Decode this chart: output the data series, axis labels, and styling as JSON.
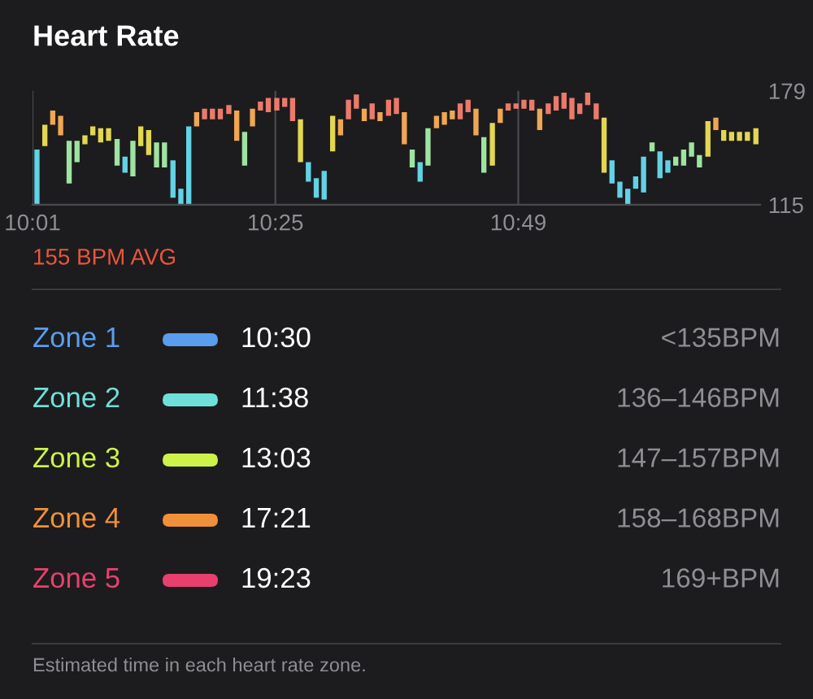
{
  "chart_data": [
    {
      "type": "bar",
      "title": "Heart Rate",
      "annotations": [
        "155 BPM AVG"
      ],
      "x": [
        10.024,
        10.037,
        10.05,
        10.063,
        10.077,
        10.09,
        10.103,
        10.116,
        10.129,
        10.142,
        10.156,
        10.169,
        10.182,
        10.195,
        10.208,
        10.221,
        10.234,
        10.248,
        10.261,
        10.274,
        10.287,
        10.3,
        10.313,
        10.326,
        10.34,
        10.353,
        10.366,
        10.379,
        10.392,
        10.405,
        10.419,
        10.432,
        10.445,
        10.458,
        10.471,
        10.484,
        10.497,
        10.511,
        10.524,
        10.537,
        10.55,
        10.563,
        10.576,
        10.589,
        10.603,
        10.616,
        10.629,
        10.642,
        10.655,
        10.668,
        10.682,
        10.695,
        10.708,
        10.721,
        10.734,
        10.747,
        10.76,
        10.774,
        10.787,
        10.8,
        10.813,
        10.826,
        10.839,
        10.852,
        10.866,
        10.879,
        10.892,
        10.905,
        10.918,
        10.931,
        10.945,
        10.958,
        10.971,
        10.984,
        10.997,
        11.01,
        11.023,
        11.037,
        11.05,
        11.063,
        11.076,
        11.089,
        11.102,
        11.115,
        11.129,
        11.142,
        11.155,
        11.168,
        11.181,
        11.194,
        11.208
      ],
      "base": [
        115,
        148,
        160,
        154,
        127,
        139,
        149,
        154,
        150,
        151,
        137,
        133,
        131,
        148,
        143,
        136,
        136,
        119,
        115,
        115,
        159,
        163,
        163,
        163,
        166,
        151,
        137,
        159,
        168,
        167,
        168,
        170,
        162,
        139,
        128,
        119,
        118,
        145,
        154,
        163,
        169,
        162,
        163,
        162,
        165,
        166,
        149,
        136,
        128,
        137,
        158,
        160,
        163,
        163,
        167,
        154,
        133,
        137,
        161,
        168,
        169,
        169,
        168,
        157,
        166,
        168,
        169,
        163,
        166,
        171,
        163,
        133,
        127,
        119,
        115,
        124,
        122,
        145,
        130,
        133,
        137,
        137,
        142,
        136,
        142,
        157,
        151,
        151,
        151,
        151,
        149
      ],
      "values": [
        31,
        12,
        8,
        11,
        24,
        12,
        5,
        5,
        8,
        7,
        15,
        9,
        20,
        11,
        14,
        14,
        14,
        21,
        9,
        44,
        8,
        6,
        6,
        6,
        5,
        17,
        19,
        10,
        5,
        8,
        7,
        5,
        13,
        24,
        11,
        11,
        16,
        20,
        9,
        11,
        8,
        7,
        9,
        5,
        9,
        9,
        18,
        10,
        11,
        21,
        7,
        7,
        5,
        9,
        7,
        15,
        20,
        24,
        8,
        4,
        3,
        5,
        6,
        12,
        6,
        8,
        9,
        12,
        6,
        7,
        9,
        31,
        13,
        9,
        9,
        7,
        20,
        5,
        15,
        7,
        5,
        9,
        8,
        7,
        20,
        7,
        6,
        5,
        5,
        5,
        9
      ],
      "colors": [
        "#62d2e6",
        "#e3d653",
        "#f0a653",
        "#f0a653",
        "#9fe3a0",
        "#9fe3a0",
        "#e3d653",
        "#e3d653",
        "#e3d653",
        "#e3d653",
        "#9fe3a0",
        "#62d2e6",
        "#9fe3a0",
        "#e3d653",
        "#e3d653",
        "#9fe3a0",
        "#9fe3a0",
        "#62d2e6",
        "#62d2e6",
        "#62d2e6",
        "#f0a653",
        "#ec7a6a",
        "#ec7a6a",
        "#ec7a6a",
        "#ec7a6a",
        "#f0a653",
        "#9fe3a0",
        "#f0a653",
        "#ec7a6a",
        "#ec7a6a",
        "#ec7a6a",
        "#ec7a6a",
        "#ec7a6a",
        "#e3d653",
        "#62d2e6",
        "#62d2e6",
        "#62d2e6",
        "#e3d653",
        "#f0a653",
        "#ec7a6a",
        "#ec7a6a",
        "#f0a653",
        "#ec7a6a",
        "#f0a653",
        "#ec7a6a",
        "#ec7a6a",
        "#f0a653",
        "#9fe3a0",
        "#62d2e6",
        "#9fe3a0",
        "#f0a653",
        "#f0a653",
        "#f0a653",
        "#ec7a6a",
        "#ec7a6a",
        "#f0a653",
        "#9fe3a0",
        "#e3d653",
        "#f0a653",
        "#ec7a6a",
        "#ec7a6a",
        "#ec7a6a",
        "#ec7a6a",
        "#f0a653",
        "#ec7a6a",
        "#ec7a6a",
        "#ec7a6a",
        "#ec7a6a",
        "#ec7a6a",
        "#ec7a6a",
        "#ec7a6a",
        "#e3d653",
        "#62d2e6",
        "#62d2e6",
        "#62d2e6",
        "#62d2e6",
        "#62d2e6",
        "#9fe3a0",
        "#62d2e6",
        "#62d2e6",
        "#9fe3a0",
        "#9fe3a0",
        "#9fe3a0",
        "#9fe3a0",
        "#e3d653",
        "#f0a653",
        "#e3d653",
        "#e3d653",
        "#e3d653",
        "#e3d653",
        "#e3d653"
      ],
      "xlim": [
        10.0167,
        11.215
      ],
      "xticks": [
        {
          "value": 10.0167,
          "label": "10:01"
        },
        {
          "value": 10.4167,
          "label": "10:25"
        },
        {
          "value": 10.8167,
          "label": "10:49"
        }
      ],
      "ylim": [
        115,
        179
      ],
      "yticks": [
        115,
        179
      ],
      "grid": "x"
    },
    {
      "type": "other",
      "categories": [
        "Zone 1",
        "Zone 2",
        "Zone 3",
        "Zone 4",
        "Zone 5"
      ],
      "colors": [
        "#5b9ded",
        "#6fe0d9",
        "#cdf24a",
        "#f0903a",
        "#e8406e"
      ],
      "annotations": [
        "10:30",
        "11:38",
        "13:03",
        "17:21",
        "19:23",
        "<135BPM",
        "136–146BPM",
        "147–157BPM",
        "158–168BPM",
        "169+BPM",
        "Estimated time in each heart rate zone."
      ]
    }
  ]
}
